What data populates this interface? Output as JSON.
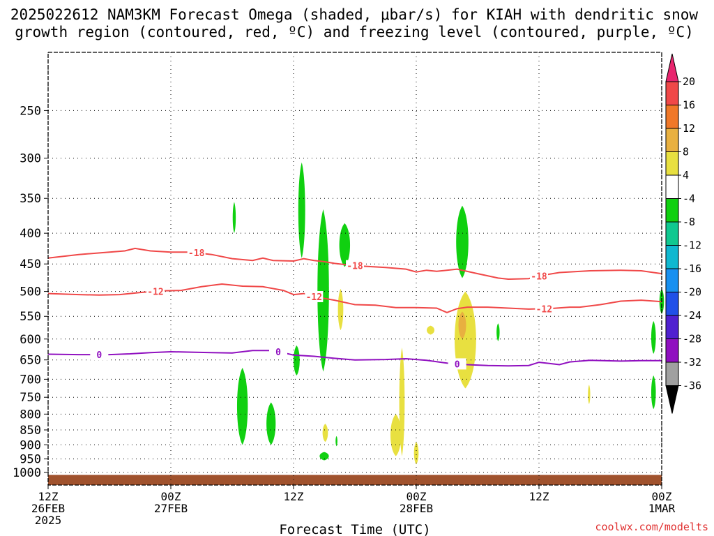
{
  "title_line1": "2025022612 NAM3KM Forecast Omega (shaded, μbar/s) for KIAH with dendritic snow",
  "title_line2": "growth region (contoured, red, ºC) and freezing level (contoured, purple, ºC)",
  "credit": "coolwx.com/modelts",
  "chart_data": {
    "type": "heatmap",
    "title": "2025022612 NAM3KM Forecast Omega (shaded, μbar/s) for KIAH with dendritic snow growth region (contoured, red, ºC) and freezing level (contoured, purple, ºC)",
    "xlabel": "Forecast Time (UTC)",
    "ylabel": "",
    "y_axis_scale": "log-pressure",
    "y_axis_direction": "pressure decreasing upward",
    "ylim": [
      1050,
      200
    ],
    "xlim_hours": [
      0,
      60
    ],
    "x_ticks": [
      {
        "hour": 0,
        "line1": "12Z",
        "line2": "26FEB",
        "line3": "2025"
      },
      {
        "hour": 12,
        "line1": "00Z",
        "line2": "27FEB",
        "line3": ""
      },
      {
        "hour": 24,
        "line1": "12Z",
        "line2": "",
        "line3": ""
      },
      {
        "hour": 36,
        "line1": "00Z",
        "line2": "28FEB",
        "line3": ""
      },
      {
        "hour": 48,
        "line1": "12Z",
        "line2": "",
        "line3": ""
      },
      {
        "hour": 60,
        "line1": "00Z",
        "line2": "1MAR",
        "line3": ""
      }
    ],
    "y_ticks": [
      250,
      300,
      350,
      400,
      450,
      500,
      550,
      600,
      650,
      700,
      750,
      800,
      850,
      900,
      950,
      1000
    ],
    "grid": true,
    "colorbar": {
      "labels": [
        "20",
        "16",
        "12",
        "8",
        "4",
        "-4",
        "-8",
        "-12",
        "-16",
        "-20",
        "-24",
        "-28",
        "-32",
        "-36"
      ],
      "colors": [
        "#e8256e",
        "#f04848",
        "#f07828",
        "#e8b040",
        "#e8e040",
        "#ffffff",
        "#10d010",
        "#10c890",
        "#10b8d0",
        "#1890f0",
        "#2050e8",
        "#5020d0",
        "#9010c0",
        "#a0a0a0",
        "#000000"
      ]
    },
    "contours": [
      {
        "label": "-18",
        "color": "#f04848",
        "kind": "dendritic snow growth boundary",
        "points": [
          [
            0,
            440
          ],
          [
            3,
            434
          ],
          [
            6,
            430
          ],
          [
            7.5,
            428
          ],
          [
            8.5,
            424
          ],
          [
            10,
            428
          ],
          [
            12,
            430
          ],
          [
            14,
            430
          ],
          [
            16,
            434
          ],
          [
            18,
            441
          ],
          [
            20,
            444
          ],
          [
            21,
            440
          ],
          [
            22,
            444
          ],
          [
            24,
            445
          ],
          [
            25,
            441
          ],
          [
            26,
            444
          ],
          [
            27,
            446
          ],
          [
            28,
            449
          ],
          [
            30,
            453
          ],
          [
            33,
            456
          ],
          [
            35,
            459
          ],
          [
            36,
            464
          ],
          [
            37,
            461
          ],
          [
            38,
            463
          ],
          [
            40,
            459
          ],
          [
            42,
            467
          ],
          [
            44,
            475
          ],
          [
            45,
            477
          ],
          [
            47,
            476
          ],
          [
            48,
            471
          ],
          [
            50,
            465
          ],
          [
            53,
            462
          ],
          [
            56,
            461
          ],
          [
            58,
            462
          ],
          [
            60,
            467
          ]
        ],
        "label_hours": [
          14.5,
          30,
          48
        ]
      },
      {
        "label": "-12",
        "color": "#f04848",
        "kind": "dendritic snow growth boundary",
        "points": [
          [
            0,
            504
          ],
          [
            3,
            506
          ],
          [
            5,
            507
          ],
          [
            7,
            506
          ],
          [
            9,
            502
          ],
          [
            11,
            499
          ],
          [
            13,
            498
          ],
          [
            15,
            491
          ],
          [
            17,
            486
          ],
          [
            19,
            490
          ],
          [
            21,
            491
          ],
          [
            23,
            498
          ],
          [
            24,
            506
          ],
          [
            25,
            504
          ],
          [
            26,
            510
          ],
          [
            28,
            517
          ],
          [
            30,
            526
          ],
          [
            32,
            527
          ],
          [
            34,
            532
          ],
          [
            36,
            532
          ],
          [
            38,
            533
          ],
          [
            39,
            542
          ],
          [
            40,
            534
          ],
          [
            41,
            531
          ],
          [
            43,
            531
          ],
          [
            45,
            533
          ],
          [
            47,
            535
          ],
          [
            49,
            534
          ],
          [
            51,
            531
          ],
          [
            52,
            531
          ],
          [
            54,
            526
          ],
          [
            56,
            519
          ],
          [
            58,
            517
          ],
          [
            60,
            520
          ]
        ],
        "label_hours": [
          10.5,
          26,
          48.5
        ]
      },
      {
        "label": "0",
        "color": "#9010c0",
        "kind": "freezing level",
        "points": [
          [
            0,
            636
          ],
          [
            3,
            637
          ],
          [
            6,
            637
          ],
          [
            8,
            635
          ],
          [
            10,
            632
          ],
          [
            12,
            630
          ],
          [
            14,
            631
          ],
          [
            16,
            632
          ],
          [
            18,
            633
          ],
          [
            20,
            627
          ],
          [
            22,
            627
          ],
          [
            24,
            638
          ],
          [
            26,
            641
          ],
          [
            28,
            646
          ],
          [
            30,
            650
          ],
          [
            33,
            649
          ],
          [
            35,
            647
          ],
          [
            37,
            651
          ],
          [
            39,
            658
          ],
          [
            41,
            662
          ],
          [
            43,
            664
          ],
          [
            45,
            665
          ],
          [
            47,
            664
          ],
          [
            48,
            656
          ],
          [
            49,
            659
          ],
          [
            50,
            662
          ],
          [
            51,
            655
          ],
          [
            53,
            651
          ],
          [
            56,
            653
          ],
          [
            58,
            652
          ],
          [
            60,
            652
          ]
        ],
        "label_hours": [
          5,
          22.5,
          40
        ]
      }
    ],
    "omega_regions": [
      {
        "value_band": "-4 to -8",
        "color": "#10d010",
        "hour": 18.2,
        "p_top": 355,
        "p_bottom": 400,
        "half_width_h": 0.2
      },
      {
        "value_band": "-4 to -8",
        "color": "#10d010",
        "hour": 24.8,
        "p_top": 305,
        "p_bottom": 440,
        "half_width_h": 0.45
      },
      {
        "value_band": "-4 to -8",
        "color": "#10d010",
        "hour": 26.9,
        "p_top": 365,
        "p_bottom": 680,
        "half_width_h": 0.75
      },
      {
        "value_band": "-4 to -8",
        "color": "#10d010",
        "hour": 29.0,
        "p_top": 385,
        "p_bottom": 455,
        "half_width_h": 0.7
      },
      {
        "value_band": "-4 to -8",
        "color": "#10d010",
        "hour": 24.3,
        "p_top": 615,
        "p_bottom": 690,
        "half_width_h": 0.4
      },
      {
        "value_band": "-4 to -8",
        "color": "#10d010",
        "hour": 19.0,
        "p_top": 670,
        "p_bottom": 900,
        "half_width_h": 0.7
      },
      {
        "value_band": "-4 to -8",
        "color": "#10d010",
        "hour": 21.8,
        "p_top": 765,
        "p_bottom": 900,
        "half_width_h": 0.6
      },
      {
        "value_band": "-4 to -8",
        "color": "#10d010",
        "hour": 27.0,
        "p_top": 925,
        "p_bottom": 955,
        "half_width_h": 0.6
      },
      {
        "value_band": "-4 to -8",
        "color": "#10d010",
        "hour": 28.2,
        "p_top": 870,
        "p_bottom": 905,
        "half_width_h": 0.12
      },
      {
        "value_band": "-4 to -8",
        "color": "#10d010",
        "hour": 40.5,
        "p_top": 360,
        "p_bottom": 475,
        "half_width_h": 0.8
      },
      {
        "value_band": "-4 to -8",
        "color": "#10d010",
        "hour": 44.0,
        "p_top": 565,
        "p_bottom": 605,
        "half_width_h": 0.2
      },
      {
        "value_band": "-4 to -8",
        "color": "#10d010",
        "hour": 59.2,
        "p_top": 560,
        "p_bottom": 635,
        "half_width_h": 0.3
      },
      {
        "value_band": "-4 to -8",
        "color": "#10d010",
        "hour": 59.2,
        "p_top": 690,
        "p_bottom": 785,
        "half_width_h": 0.3
      },
      {
        "value_band": "-4 to -8",
        "color": "#10d010",
        "hour": 60.0,
        "p_top": 495,
        "p_bottom": 545,
        "half_width_h": 0.3
      },
      {
        "value_band": "4 to 8",
        "color": "#e8e040",
        "hour": 28.6,
        "p_top": 495,
        "p_bottom": 580,
        "half_width_h": 0.35
      },
      {
        "value_band": "4 to 8",
        "color": "#e8e040",
        "hour": 40.8,
        "p_top": 500,
        "p_bottom": 725,
        "half_width_h": 1.4
      },
      {
        "value_band": "4 to 8",
        "color": "#e8e040",
        "hour": 34.6,
        "p_top": 620,
        "p_bottom": 940,
        "half_width_h": 0.35
      },
      {
        "value_band": "4 to 8",
        "color": "#e8e040",
        "hour": 34.0,
        "p_top": 800,
        "p_bottom": 940,
        "half_width_h": 0.7
      },
      {
        "value_band": "4 to 8",
        "color": "#e8e040",
        "hour": 27.1,
        "p_top": 830,
        "p_bottom": 890,
        "half_width_h": 0.35
      },
      {
        "value_band": "4 to 8",
        "color": "#e8e040",
        "hour": 36.0,
        "p_top": 890,
        "p_bottom": 970,
        "half_width_h": 0.3
      },
      {
        "value_band": "4 to 8",
        "color": "#e8e040",
        "hour": 37.4,
        "p_top": 570,
        "p_bottom": 590,
        "half_width_h": 0.5
      },
      {
        "value_band": "4 to 8",
        "color": "#e8e040",
        "hour": 52.9,
        "p_top": 715,
        "p_bottom": 770,
        "half_width_h": 0.15
      },
      {
        "value_band": "8 to 12",
        "color": "#e8b040",
        "hour": 40.5,
        "p_top": 540,
        "p_bottom": 600,
        "half_width_h": 0.5
      }
    ],
    "terrain": {
      "color": "#a0522d",
      "p_top": 1010,
      "p_bottom": 1050
    }
  }
}
